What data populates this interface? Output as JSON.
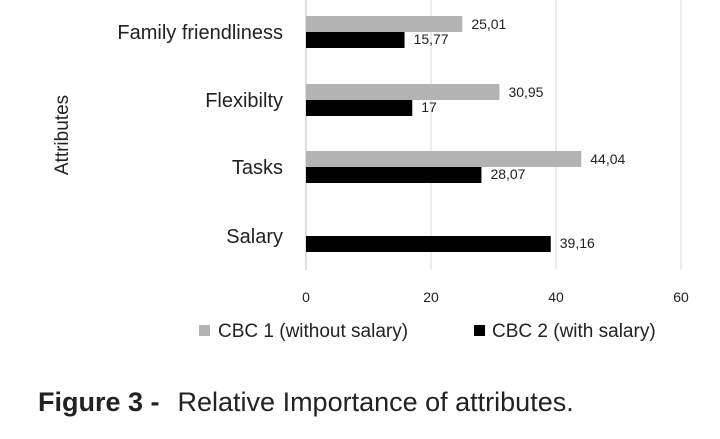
{
  "chart_data": {
    "type": "bar",
    "orientation": "horizontal",
    "categories": [
      "Family friendliness",
      "Flexibilty",
      "Tasks",
      "Salary"
    ],
    "series": [
      {
        "name": "CBC 1 (without salary)",
        "values": [
          25.01,
          30.95,
          44.04,
          null
        ],
        "labels": [
          "25,01",
          "30,95",
          "44,04",
          ""
        ],
        "color": "#b3b3b3"
      },
      {
        "name": "CBC 2 (with salary)",
        "values": [
          15.77,
          17,
          28.07,
          39.16
        ],
        "labels": [
          "15,77",
          "17",
          "28,07",
          "39,16"
        ],
        "color": "#000000"
      }
    ],
    "xlim": [
      0,
      60
    ],
    "xticks": [
      "0",
      "20",
      "40",
      "60"
    ],
    "ylabel": "Attributes",
    "xlabel": "",
    "grid": true,
    "legend_position": "bottom"
  },
  "caption": {
    "lead": "Figure 3 -",
    "text": "Relative Importance of attributes."
  }
}
